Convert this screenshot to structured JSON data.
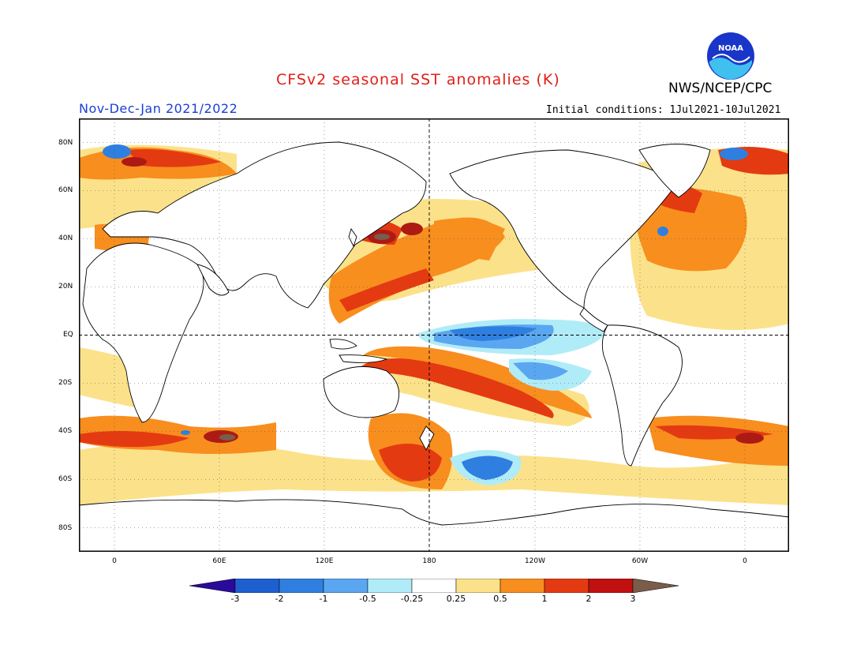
{
  "title": "CFSv2 seasonal SST anomalies (K)",
  "organization": "NWS/NCEP/CPC",
  "logo_text": "NOAA",
  "period": "Nov-Dec-Jan 2021/2022",
  "initial_conditions": "Initial conditions: 1Jul2021-10Jul2021",
  "lat_labels": [
    "80N",
    "60N",
    "40N",
    "20N",
    "EQ",
    "20S",
    "40S",
    "60S",
    "80S"
  ],
  "lon_labels": [
    "0",
    "60E",
    "120E",
    "180",
    "120W",
    "60W",
    "0"
  ],
  "colorbar": {
    "labels": [
      "-3",
      "-2",
      "-1",
      "-0.5",
      "-0.25",
      "0.25",
      "0.5",
      "1",
      "2",
      "3"
    ],
    "colors": [
      "#2a0a9a",
      "#1e5fd0",
      "#2f7fe0",
      "#5aa6f0",
      "#b0ecf8",
      "#ffffff",
      "#fbe28a",
      "#f88e1e",
      "#e43a12",
      "#c01010",
      "#ad1a14",
      "#7a5c4a"
    ]
  }
}
